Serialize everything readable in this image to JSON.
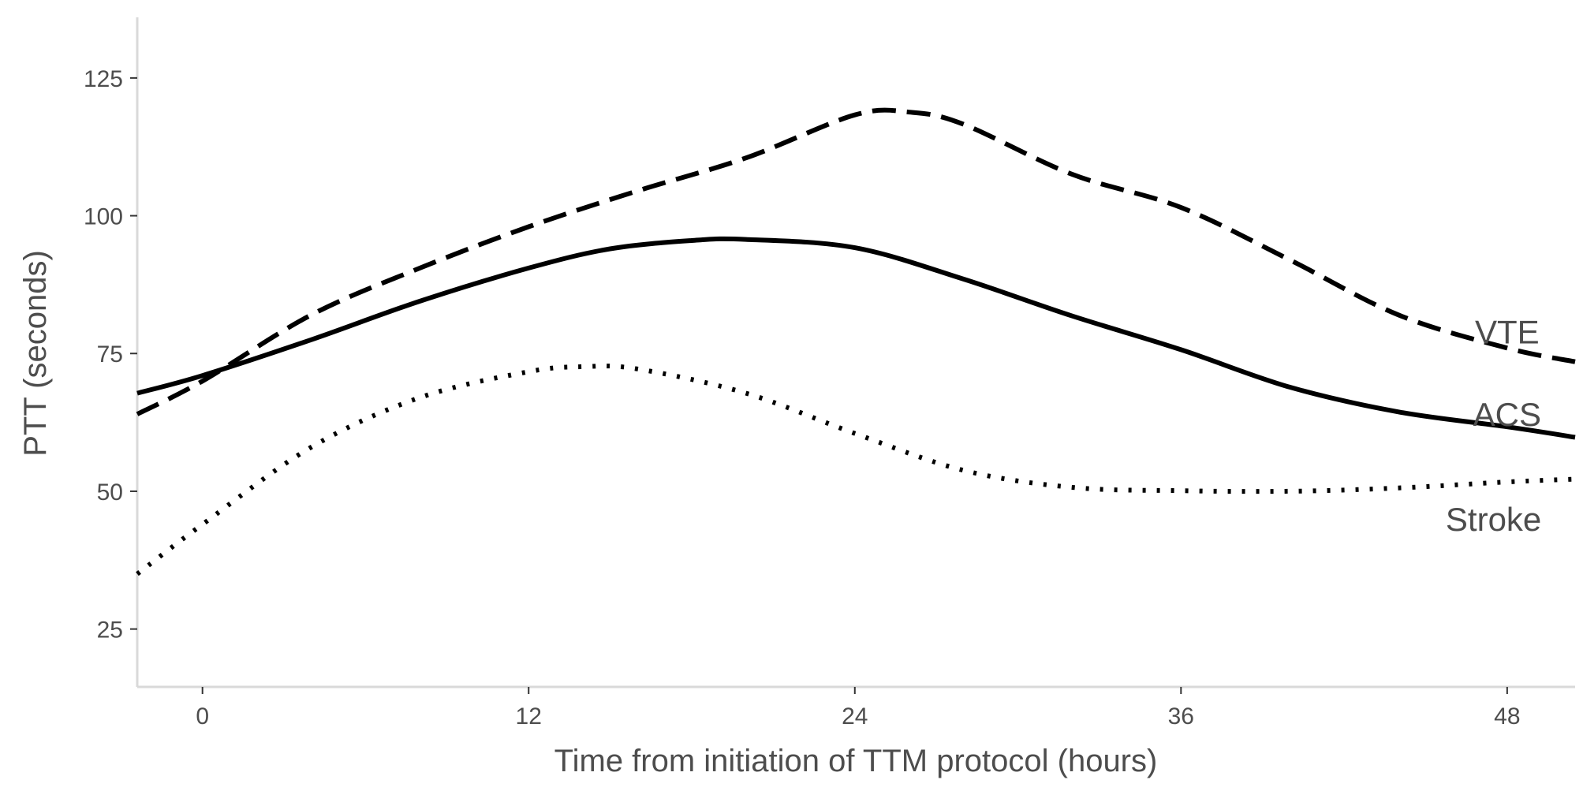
{
  "chart_data": {
    "type": "line",
    "title": "",
    "xlabel": "Time from initiation of TTM protocol (hours)",
    "ylabel": "PTT (seconds)",
    "xlim": [
      -2.4,
      50.5
    ],
    "ylim": [
      14.5,
      136
    ],
    "xticks": [
      0,
      12,
      24,
      36,
      48
    ],
    "yticks": [
      25,
      50,
      75,
      100,
      125
    ],
    "grid": false,
    "legend": "none",
    "series": [
      {
        "name": "ACS",
        "linestyle": "solid",
        "label_at": [
          48.0,
          64.0
        ],
        "x": [
          -2.4,
          0,
          4,
          8,
          12,
          15,
          18,
          20,
          24,
          28,
          32,
          36,
          40,
          44,
          48,
          50.5
        ],
        "y": [
          67.8,
          71,
          77.5,
          84.5,
          90.5,
          94,
          95.5,
          95.7,
          94.2,
          88.5,
          81.8,
          75.7,
          68.9,
          64.4,
          61.7,
          59.8
        ]
      },
      {
        "name": "VTE",
        "linestyle": "dashed",
        "label_at": [
          48.0,
          79.0
        ],
        "x": [
          -2.4,
          0,
          4,
          8,
          12,
          16,
          20,
          24,
          26,
          28,
          32,
          36,
          40,
          44,
          48,
          50.5
        ],
        "y": [
          64,
          70,
          82,
          90.5,
          98,
          104.5,
          110.5,
          118.3,
          118.8,
          116.6,
          107.5,
          101.5,
          92,
          82,
          76,
          73.5
        ]
      },
      {
        "name": "Stroke",
        "linestyle": "dotted",
        "label_at": [
          47.5,
          45.0
        ],
        "x": [
          -2.4,
          0,
          4,
          8,
          12,
          14,
          16,
          20,
          24,
          28,
          32,
          36,
          40,
          44,
          48,
          50.5
        ],
        "y": [
          35,
          44,
          58,
          67,
          71.7,
          72.6,
          72.2,
          67.8,
          60.5,
          53.8,
          50.7,
          50.1,
          50,
          50.6,
          51.7,
          52.2
        ]
      }
    ]
  }
}
